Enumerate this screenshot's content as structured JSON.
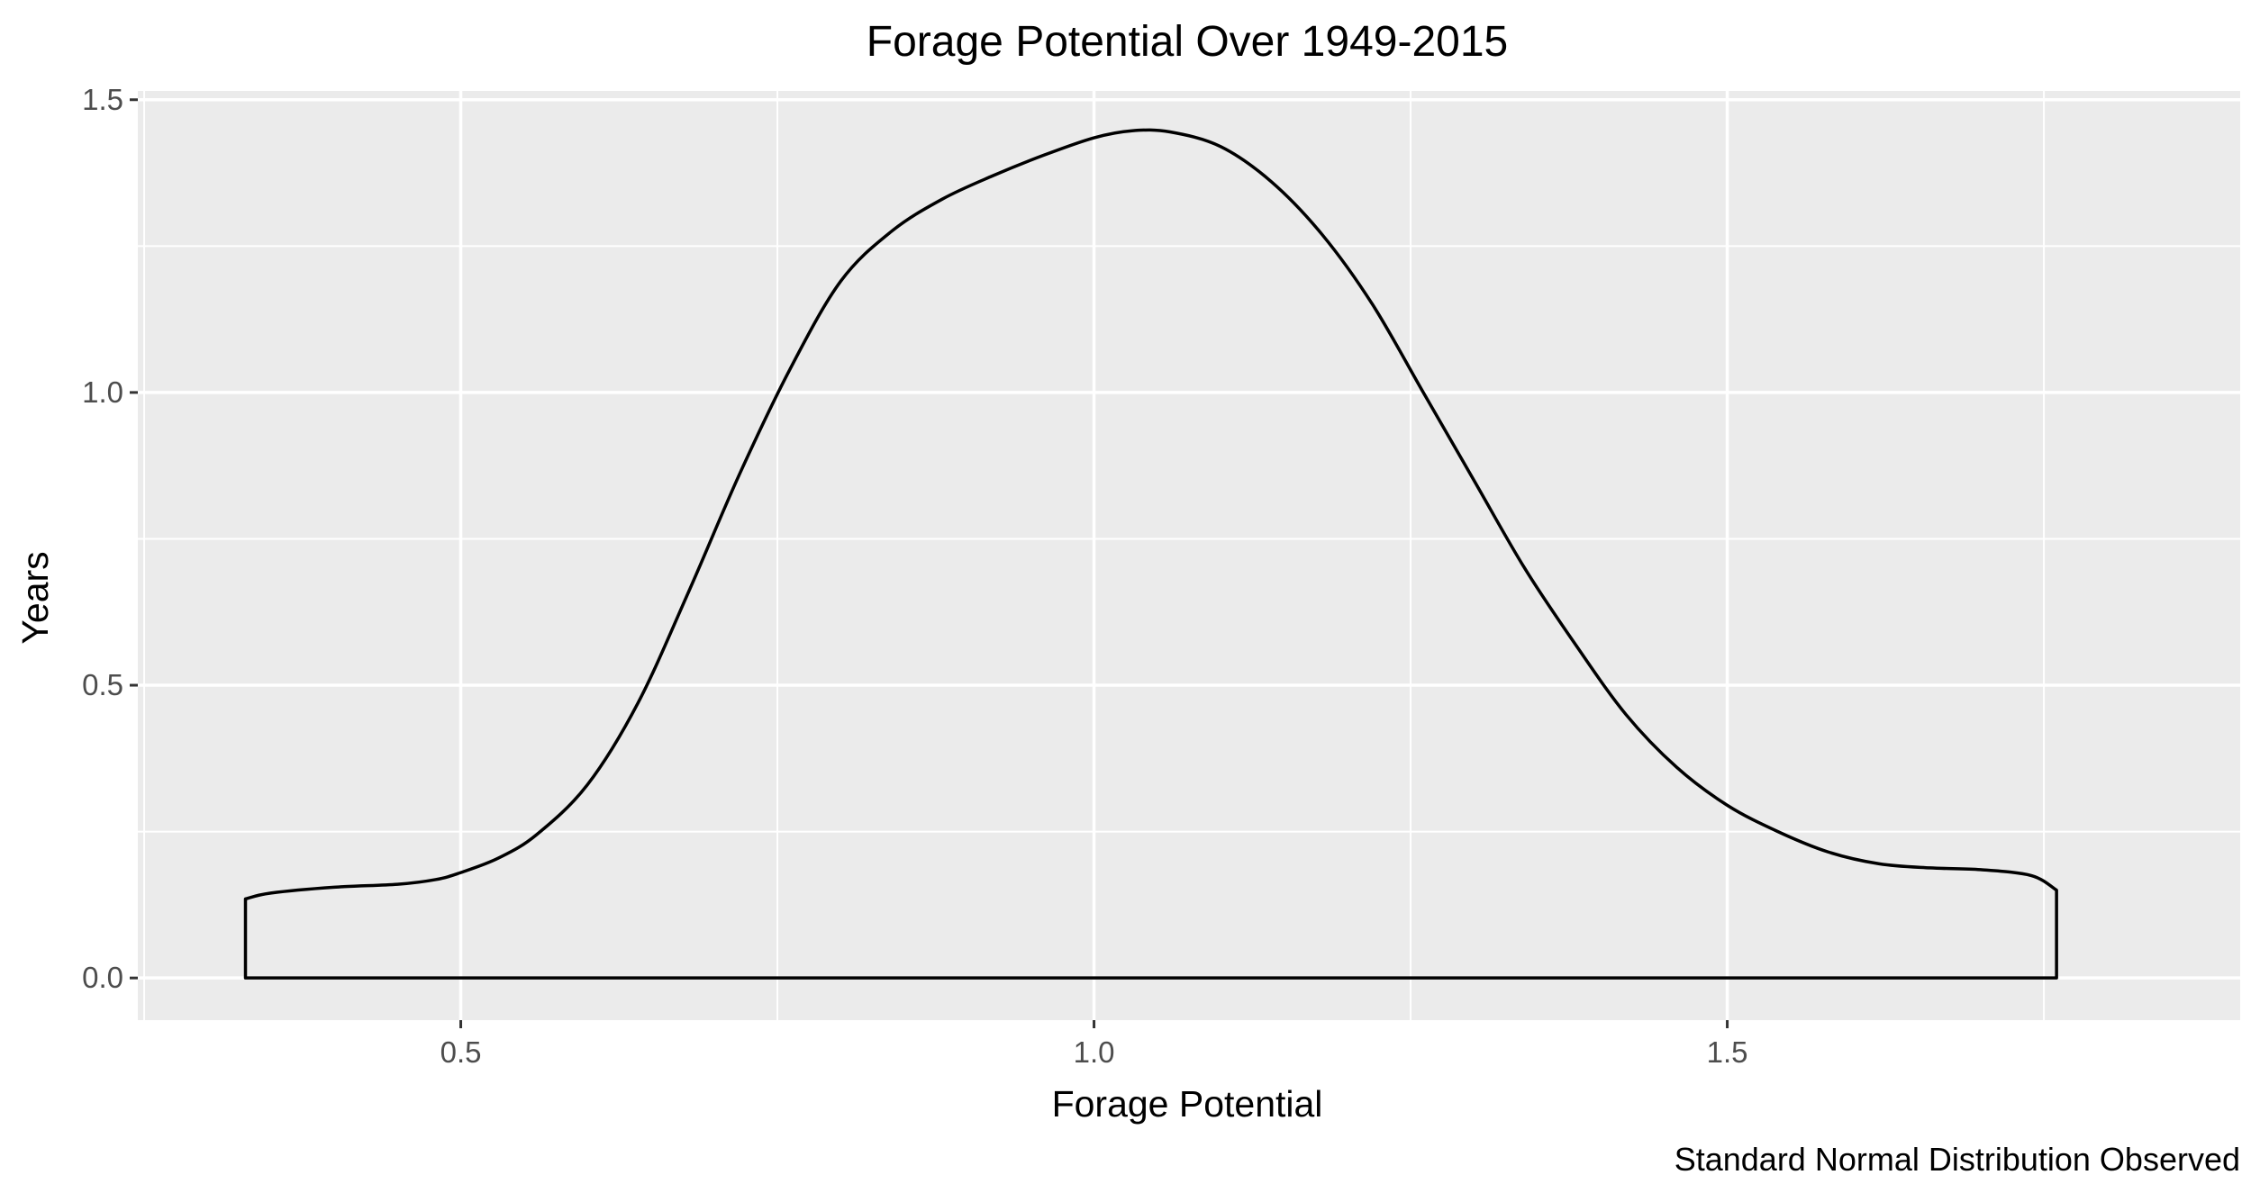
{
  "chart_data": {
    "type": "area",
    "title": "Forage Potential Over 1949-2015",
    "xlabel": "Forage Potential",
    "ylabel": "Years",
    "caption": "Standard Normal Distribution Observed",
    "xlim": [
      0.245,
      1.905
    ],
    "ylim": [
      -0.072,
      1.515
    ],
    "x_ticks": [
      0.5,
      1.0,
      1.5
    ],
    "x_tick_labels": [
      "0.5",
      "1.0",
      "1.5"
    ],
    "y_ticks": [
      0.0,
      0.5,
      1.0,
      1.5
    ],
    "y_tick_labels": [
      "0.0",
      "0.5",
      "1.0",
      "1.5"
    ],
    "grid": true,
    "panel_background": "#ebebeb",
    "grid_color": "#ffffff",
    "line_color": "#000000",
    "series": [
      {
        "x": [
          0.33,
          0.35,
          0.4,
          0.45,
          0.48,
          0.5,
          0.53,
          0.56,
          0.6,
          0.64,
          0.68,
          0.72,
          0.76,
          0.8,
          0.84,
          0.88,
          0.92,
          0.96,
          1.0,
          1.03,
          1.06,
          1.1,
          1.14,
          1.18,
          1.22,
          1.26,
          1.3,
          1.34,
          1.38,
          1.42,
          1.46,
          1.5,
          1.54,
          1.58,
          1.62,
          1.66,
          1.7,
          1.74,
          1.76
        ],
        "y": [
          0.135,
          0.145,
          0.155,
          0.16,
          0.168,
          0.18,
          0.205,
          0.245,
          0.33,
          0.47,
          0.66,
          0.86,
          1.04,
          1.19,
          1.275,
          1.33,
          1.37,
          1.405,
          1.435,
          1.447,
          1.445,
          1.42,
          1.36,
          1.27,
          1.15,
          1.0,
          0.85,
          0.7,
          0.57,
          0.45,
          0.36,
          0.295,
          0.25,
          0.215,
          0.195,
          0.188,
          0.185,
          0.175,
          0.15
        ]
      }
    ]
  }
}
